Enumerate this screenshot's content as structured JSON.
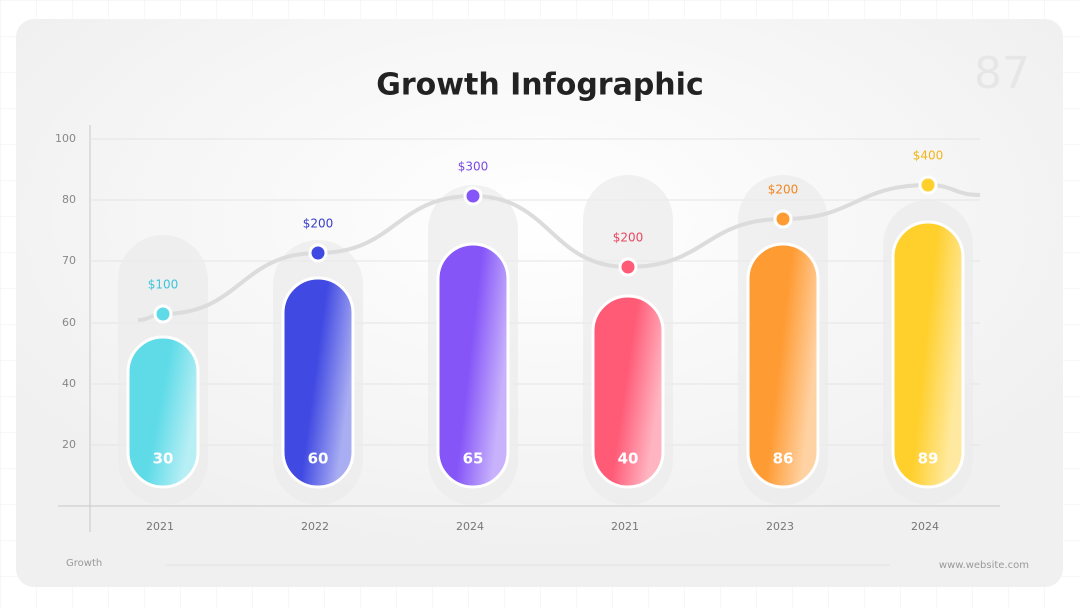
{
  "title": "Growth Infographic",
  "page_number": "87",
  "axis": {
    "labels": [
      "100",
      "80",
      "70",
      "60",
      "40",
      "20"
    ]
  },
  "items": [
    {
      "year": "2021",
      "value": "30",
      "amount": "$100"
    },
    {
      "year": "2022",
      "value": "60",
      "amount": "$200"
    },
    {
      "year": "2024",
      "value": "65",
      "amount": "$300"
    },
    {
      "year": "2021",
      "value": "40",
      "amount": "$200"
    },
    {
      "year": "2023",
      "value": "86",
      "amount": "$200"
    },
    {
      "year": "2024",
      "value": "89",
      "amount": "$400"
    }
  ],
  "footer": {
    "left": "Growth",
    "right": "www.website.com"
  }
}
